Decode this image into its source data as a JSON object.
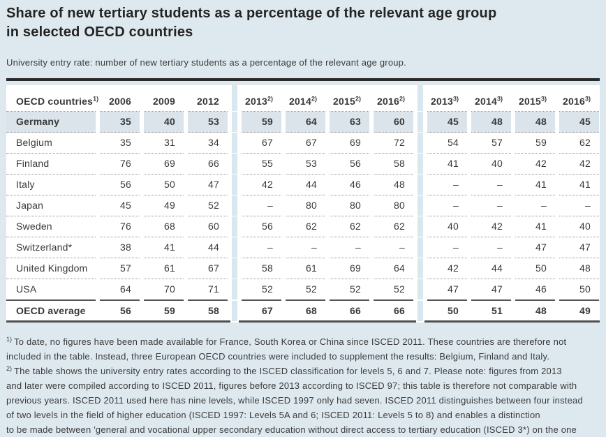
{
  "page": {
    "title_line1": "Share of new tertiary students as a percentage of the relevant age group",
    "title_line2": "in selected OECD countries",
    "subtitle": "University entry rate: number of new tertiary students as a percentage of the relevant age group."
  },
  "colors": {
    "page_background": "#dee9ef",
    "table_background": "#ffffff",
    "column_group_band": "#d9e7ef",
    "germany_highlight": "#dae4ea",
    "text": "#383838",
    "top_rule": "#2b2b2b",
    "bottom_rule": "#4e4e4e"
  },
  "table": {
    "header": {
      "country_label": "OECD countries",
      "country_sup": "1)",
      "years": [
        {
          "label": "2006",
          "sup": ""
        },
        {
          "label": "2009",
          "sup": ""
        },
        {
          "label": "2012",
          "sup": ""
        },
        {
          "label": "2013",
          "sup": "2)"
        },
        {
          "label": "2014",
          "sup": "2)"
        },
        {
          "label": "2015",
          "sup": "2)"
        },
        {
          "label": "2016",
          "sup": "2)"
        },
        {
          "label": "2013",
          "sup": "3)"
        },
        {
          "label": "2014",
          "sup": "3)"
        },
        {
          "label": "2015",
          "sup": "3)"
        },
        {
          "label": "2016",
          "sup": "3)"
        }
      ]
    },
    "rows": [
      {
        "country": "Germany",
        "highlight": true,
        "values": [
          "35",
          "40",
          "53",
          "59",
          "64",
          "63",
          "60",
          "45",
          "48",
          "48",
          "45"
        ]
      },
      {
        "country": "Belgium",
        "values": [
          "35",
          "31",
          "34",
          "67",
          "67",
          "69",
          "72",
          "54",
          "57",
          "59",
          "62"
        ]
      },
      {
        "country": "Finland",
        "values": [
          "76",
          "69",
          "66",
          "55",
          "53",
          "56",
          "58",
          "41",
          "40",
          "42",
          "42"
        ]
      },
      {
        "country": "Italy",
        "values": [
          "56",
          "50",
          "47",
          "42",
          "44",
          "46",
          "48",
          "–",
          "–",
          "41",
          "41"
        ]
      },
      {
        "country": "Japan",
        "values": [
          "45",
          "49",
          "52",
          "–",
          "80",
          "80",
          "80",
          "–",
          "–",
          "–",
          "–"
        ]
      },
      {
        "country": "Sweden",
        "values": [
          "76",
          "68",
          "60",
          "56",
          "62",
          "62",
          "62",
          "40",
          "42",
          "41",
          "40"
        ]
      },
      {
        "country": "Switzerland*",
        "values": [
          "38",
          "41",
          "44",
          "–",
          "–",
          "–",
          "–",
          "–",
          "–",
          "47",
          "47"
        ]
      },
      {
        "country": "United Kingdom",
        "values": [
          "57",
          "61",
          "67",
          "58",
          "61",
          "69",
          "64",
          "42",
          "44",
          "50",
          "48"
        ]
      },
      {
        "country": "USA",
        "solid_below": true,
        "values": [
          "64",
          "70",
          "71",
          "52",
          "52",
          "52",
          "52",
          "47",
          "47",
          "46",
          "50"
        ]
      },
      {
        "country": "OECD average",
        "bold": true,
        "values": [
          "56",
          "59",
          "58",
          "67",
          "68",
          "66",
          "66",
          "50",
          "51",
          "48",
          "49"
        ]
      }
    ]
  },
  "footnotes": [
    {
      "sup": "1)",
      "lines": [
        "To date, no figures have been made available for France, South Korea or China since ISCED 2011. These countries are therefore not",
        "included in the table. Instead, three European OECD countries were included to supplement the results: Belgium, Finland and Italy."
      ]
    },
    {
      "sup": "2)",
      "lines": [
        "The table shows the university entry rates according to the ISCED classification for levels 5, 6 and 7. Please note: figures from 2013",
        "and later were compiled according to ISCED 2011, figures before 2013 according to ISCED 97; this table is therefore not comparable with",
        "previous years. ISCED 2011 used here has nine levels, while ISCED 1997 only had seven. ISCED 2011 distinguishes between four instead",
        "of two levels in the field of higher education (ISCED 1997: Levels 5A and 6; ISCED 2011: Levels 5 to 8) and enables a distinction",
        "to be made between 'general and vocational upper secondary education without direct access to tertiary education (ISCED 3*) on the one"
      ]
    }
  ]
}
